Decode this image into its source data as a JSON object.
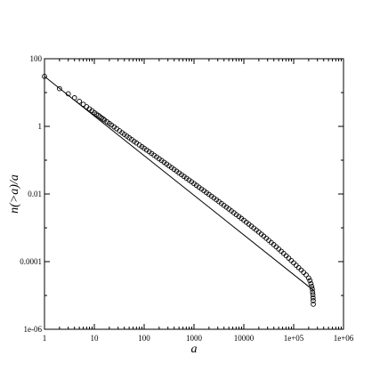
{
  "chart_data": {
    "type": "scatter",
    "title": "",
    "xlabel": "a",
    "ylabel": "n(>a)/a",
    "x_scale": "log",
    "y_scale": "log",
    "xlim": [
      1,
      1000000
    ],
    "ylim": [
      1e-06,
      100
    ],
    "x_tick_labels": [
      "1",
      "10",
      "100",
      "1000",
      "10000",
      "1e+05",
      "1e+06"
    ],
    "y_tick_labels": [
      "100",
      "1",
      "0.01",
      "0.0001",
      "1e-06"
    ],
    "grid": false,
    "legend": "none",
    "series": [
      {
        "marker": "open-circle",
        "x": [
          1,
          2,
          3,
          4,
          5,
          6,
          7,
          8,
          9,
          10,
          11,
          12,
          13,
          14,
          15,
          16,
          18,
          20,
          22,
          25,
          28,
          32,
          36,
          40,
          45,
          50,
          56,
          63,
          70,
          80,
          90,
          100,
          112,
          126,
          141,
          158,
          178,
          200,
          224,
          251,
          282,
          316,
          355,
          398,
          447,
          501,
          562,
          631,
          708,
          794,
          891,
          1000,
          1122,
          1259,
          1413,
          1585,
          1778,
          1995,
          2239,
          2512,
          2818,
          3162,
          3548,
          3981,
          4467,
          5012,
          5623,
          6310,
          7079,
          7943,
          8913,
          10000,
          11220,
          12589,
          14125,
          15849,
          17783,
          19953,
          22387,
          25119,
          28184,
          31623,
          35481,
          39811,
          44668,
          50119,
          56234,
          63096,
          70795,
          79433,
          89125,
          100000,
          112202,
          125893,
          141254,
          158489,
          177828,
          199526,
          212000,
          222000,
          230000,
          236000,
          240000,
          243000,
          245000,
          246500,
          247500
        ],
        "y": [
          30,
          13,
          9.2,
          7,
          5.5,
          4.5,
          3.8,
          3.3,
          2.9,
          2.55,
          2.3,
          2.1,
          1.93,
          1.78,
          1.65,
          1.54,
          1.36,
          1.22,
          1.1,
          0.96,
          0.85,
          0.74,
          0.65,
          0.58,
          0.515,
          0.46,
          0.41,
          0.36,
          0.323,
          0.283,
          0.251,
          0.225,
          0.2,
          0.178,
          0.158,
          0.14,
          0.124,
          0.11,
          0.098,
          0.087,
          0.077,
          0.068,
          0.0605,
          0.0535,
          0.0475,
          0.042,
          0.0372,
          0.033,
          0.0292,
          0.0259,
          0.023,
          0.0203,
          0.018,
          0.0159,
          0.0141,
          0.0125,
          0.011,
          0.00975,
          0.00862,
          0.00762,
          0.00673,
          0.00595,
          0.00525,
          0.00463,
          0.00408,
          0.0036,
          0.00317,
          0.00279,
          0.00245,
          0.00216,
          0.0019,
          0.00167,
          0.00146,
          0.00128,
          0.00112,
          0.00098,
          0.00086,
          0.00075,
          0.000652,
          0.000566,
          0.000491,
          0.000425,
          0.000368,
          0.000318,
          0.000274,
          0.000236,
          0.000203,
          0.000174,
          0.000149,
          0.000127,
          0.000108,
          9.2e-05,
          7.8e-05,
          6.65e-05,
          5.65e-05,
          4.8e-05,
          4.05e-05,
          3.3e-05,
          2.75e-05,
          2.25e-05,
          1.85e-05,
          1.55e-05,
          1.25e-05,
          1.05e-05,
          8.5e-06,
          7e-06,
          5.5e-06
        ]
      },
      {
        "marker": "line",
        "x": [
          1,
          260000
        ],
        "y": [
          30,
          1.35e-05
        ]
      }
    ]
  }
}
